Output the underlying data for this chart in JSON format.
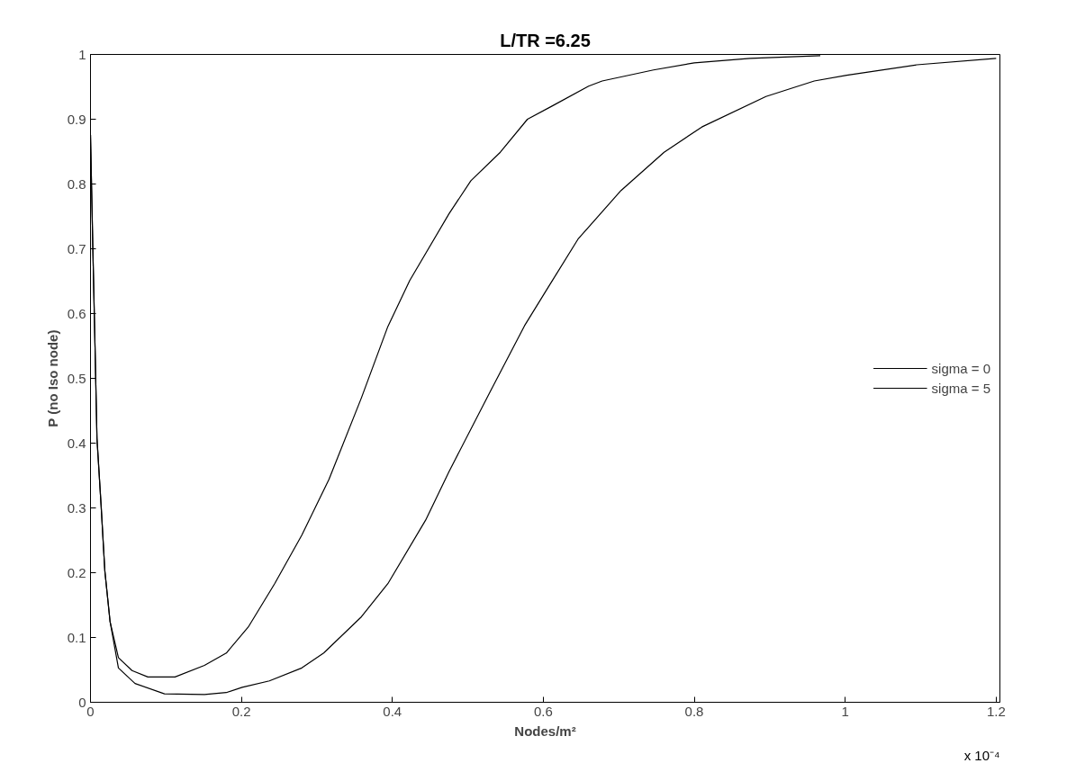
{
  "chart_data": {
    "type": "line",
    "title": "L/TR =6.25",
    "xlabel": "Nodes/m²",
    "ylabel": "P (no Iso node)",
    "annotations": [
      "x 10⁻⁴"
    ],
    "xlim": [
      0,
      1.205
    ],
    "ylim": [
      0,
      1
    ],
    "xticks": [
      0,
      0.2,
      0.4,
      0.6,
      0.8,
      1,
      1.2
    ],
    "yticks": [
      0,
      0.1,
      0.2,
      0.3,
      0.4,
      0.5,
      0.6,
      0.7,
      0.8,
      0.9,
      1
    ],
    "grid": false,
    "legend": "right",
    "line_style": "solid",
    "marker": "none",
    "series": [
      {
        "name": "sigma = 0",
        "color": "#000000",
        "x": [
          0,
          0.003,
          0.006,
          0.0086,
          0.014,
          0.019,
          0.026,
          0.037,
          0.055,
          0.076,
          0.112,
          0.151,
          0.18,
          0.209,
          0.244,
          0.28,
          0.316,
          0.359,
          0.394,
          0.423,
          0.475,
          0.504,
          0.543,
          0.579,
          0.611,
          0.66,
          0.678,
          0.746,
          0.8,
          0.874,
          0.967
        ],
        "values": [
          0.876,
          0.707,
          0.55,
          0.407,
          0.305,
          0.203,
          0.124,
          0.069,
          0.049,
          0.039,
          0.039,
          0.057,
          0.076,
          0.116,
          0.183,
          0.258,
          0.344,
          0.47,
          0.58,
          0.651,
          0.754,
          0.805,
          0.849,
          0.9,
          0.92,
          0.951,
          0.959,
          0.976,
          0.987,
          0.994,
          0.998
        ]
      },
      {
        "name": "sigma = 5",
        "color": "#000000",
        "x": [
          0,
          0.003,
          0.006,
          0.0086,
          0.014,
          0.019,
          0.026,
          0.037,
          0.059,
          0.098,
          0.151,
          0.18,
          0.201,
          0.237,
          0.28,
          0.309,
          0.359,
          0.394,
          0.444,
          0.475,
          0.529,
          0.575,
          0.604,
          0.646,
          0.703,
          0.76,
          0.81,
          0.895,
          0.959,
          1.002,
          1.095,
          1.2
        ],
        "values": [
          0.876,
          0.707,
          0.55,
          0.407,
          0.305,
          0.203,
          0.124,
          0.053,
          0.029,
          0.013,
          0.012,
          0.015,
          0.023,
          0.033,
          0.053,
          0.076,
          0.132,
          0.183,
          0.281,
          0.356,
          0.478,
          0.581,
          0.636,
          0.715,
          0.79,
          0.849,
          0.888,
          0.935,
          0.959,
          0.968,
          0.984,
          0.994
        ]
      }
    ]
  }
}
